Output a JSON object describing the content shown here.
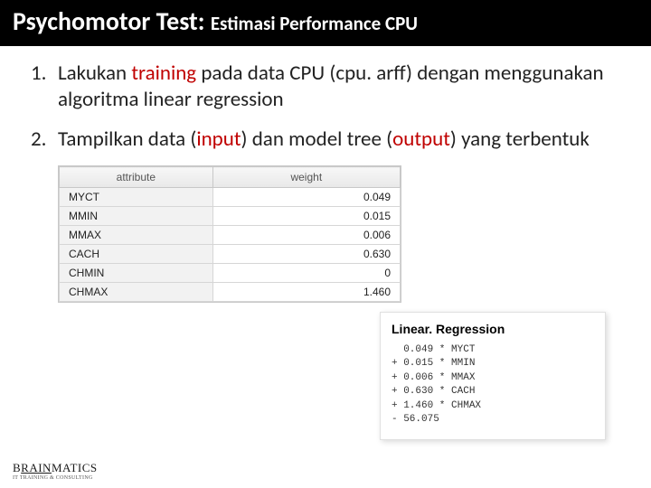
{
  "title": {
    "main": "Psychomotor Test: ",
    "sub": "Estimasi Performance CPU"
  },
  "items": [
    {
      "num": "1.",
      "pre": "Lakukan ",
      "hl": "training",
      "post": " pada data CPU (cpu. arff) dengan menggunakan algoritma linear regression"
    },
    {
      "num": "2.",
      "pre": "Tampilkan data (",
      "hl": "input",
      "mid": ") dan model tree (",
      "hl2": "output",
      "post": ") yang terbentuk"
    }
  ],
  "table": {
    "headers": [
      "attribute",
      "weight"
    ],
    "rows": [
      {
        "attr": "MYCT",
        "val": "0.049"
      },
      {
        "attr": "MMIN",
        "val": "0.015"
      },
      {
        "attr": "MMAX",
        "val": "0.006"
      },
      {
        "attr": "CACH",
        "val": "0.630"
      },
      {
        "attr": "CHMIN",
        "val": "0"
      },
      {
        "attr": "CHMAX",
        "val": "1.460"
      }
    ]
  },
  "regression": {
    "title": "Linear. Regression",
    "lines": [
      "  0.049 * MYCT",
      "+ 0.015 * MMIN",
      "+ 0.006 * MMAX",
      "+ 0.630 * CACH",
      "+ 1.460 * CHMAX",
      "- 56.075"
    ]
  },
  "logo": {
    "line1": "BRAINMATICS",
    "line2": "IT TRAINING & CONSULTING"
  }
}
